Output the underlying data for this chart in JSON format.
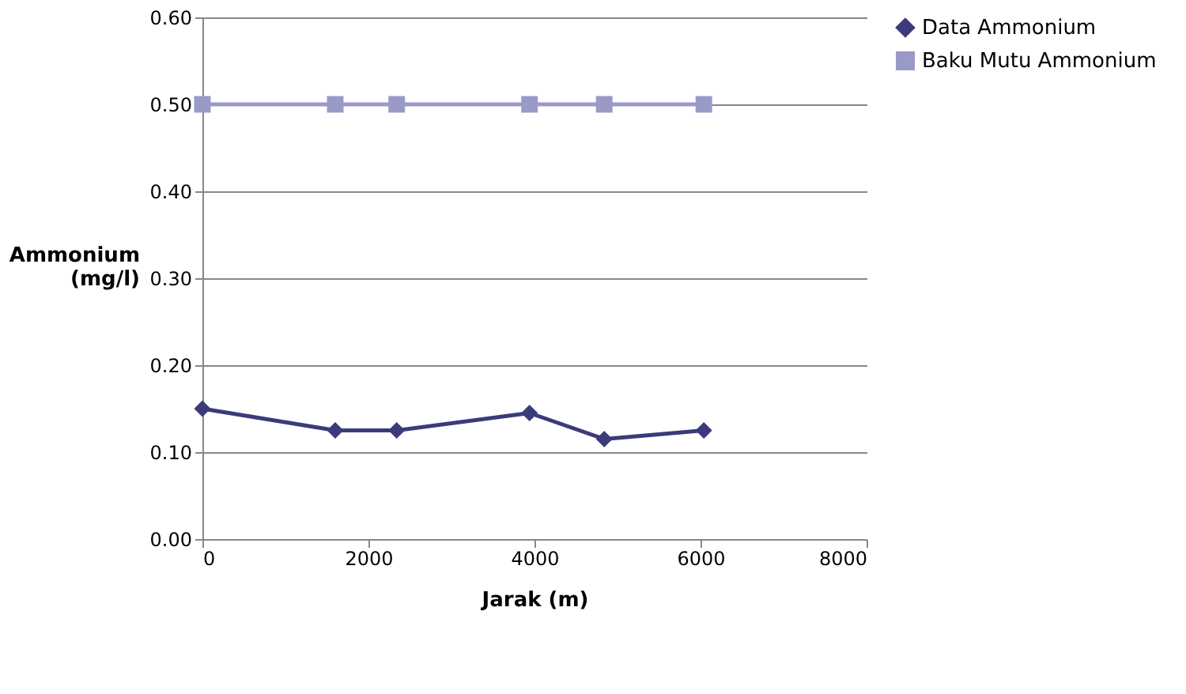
{
  "chart_data": {
    "type": "line",
    "xlabel": "Jarak (m)",
    "ylabel": "Ammonium (mg/l)",
    "x": [
      0,
      1600,
      2340,
      3940,
      4840,
      6040
    ],
    "series": [
      {
        "name": "Data Ammonium",
        "color": "#3b3b7a",
        "marker": "diamond",
        "values": [
          0.15,
          0.125,
          0.125,
          0.145,
          0.115,
          0.125
        ]
      },
      {
        "name": "Baku Mutu Ammonium",
        "color": "#9a9ac8",
        "marker": "square",
        "values": [
          0.5,
          0.5,
          0.5,
          0.5,
          0.5,
          0.5
        ]
      }
    ],
    "xlim": [
      0,
      8000
    ],
    "xticks": [
      0,
      2000,
      4000,
      6000,
      8000
    ],
    "ylim": [
      0,
      0.6
    ],
    "yticks": [
      {
        "value": 0,
        "label": "0.00"
      },
      {
        "value": 0.1,
        "label": "0.10"
      },
      {
        "value": 0.2,
        "label": "0.20"
      },
      {
        "value": 0.3,
        "label": "0.30"
      },
      {
        "value": 0.4,
        "label": "0.40"
      },
      {
        "value": 0.5,
        "label": "0.50"
      },
      {
        "value": 0.6,
        "label": "0.60"
      }
    ],
    "grid": "y",
    "legend": "right",
    "line_style": "solid"
  }
}
